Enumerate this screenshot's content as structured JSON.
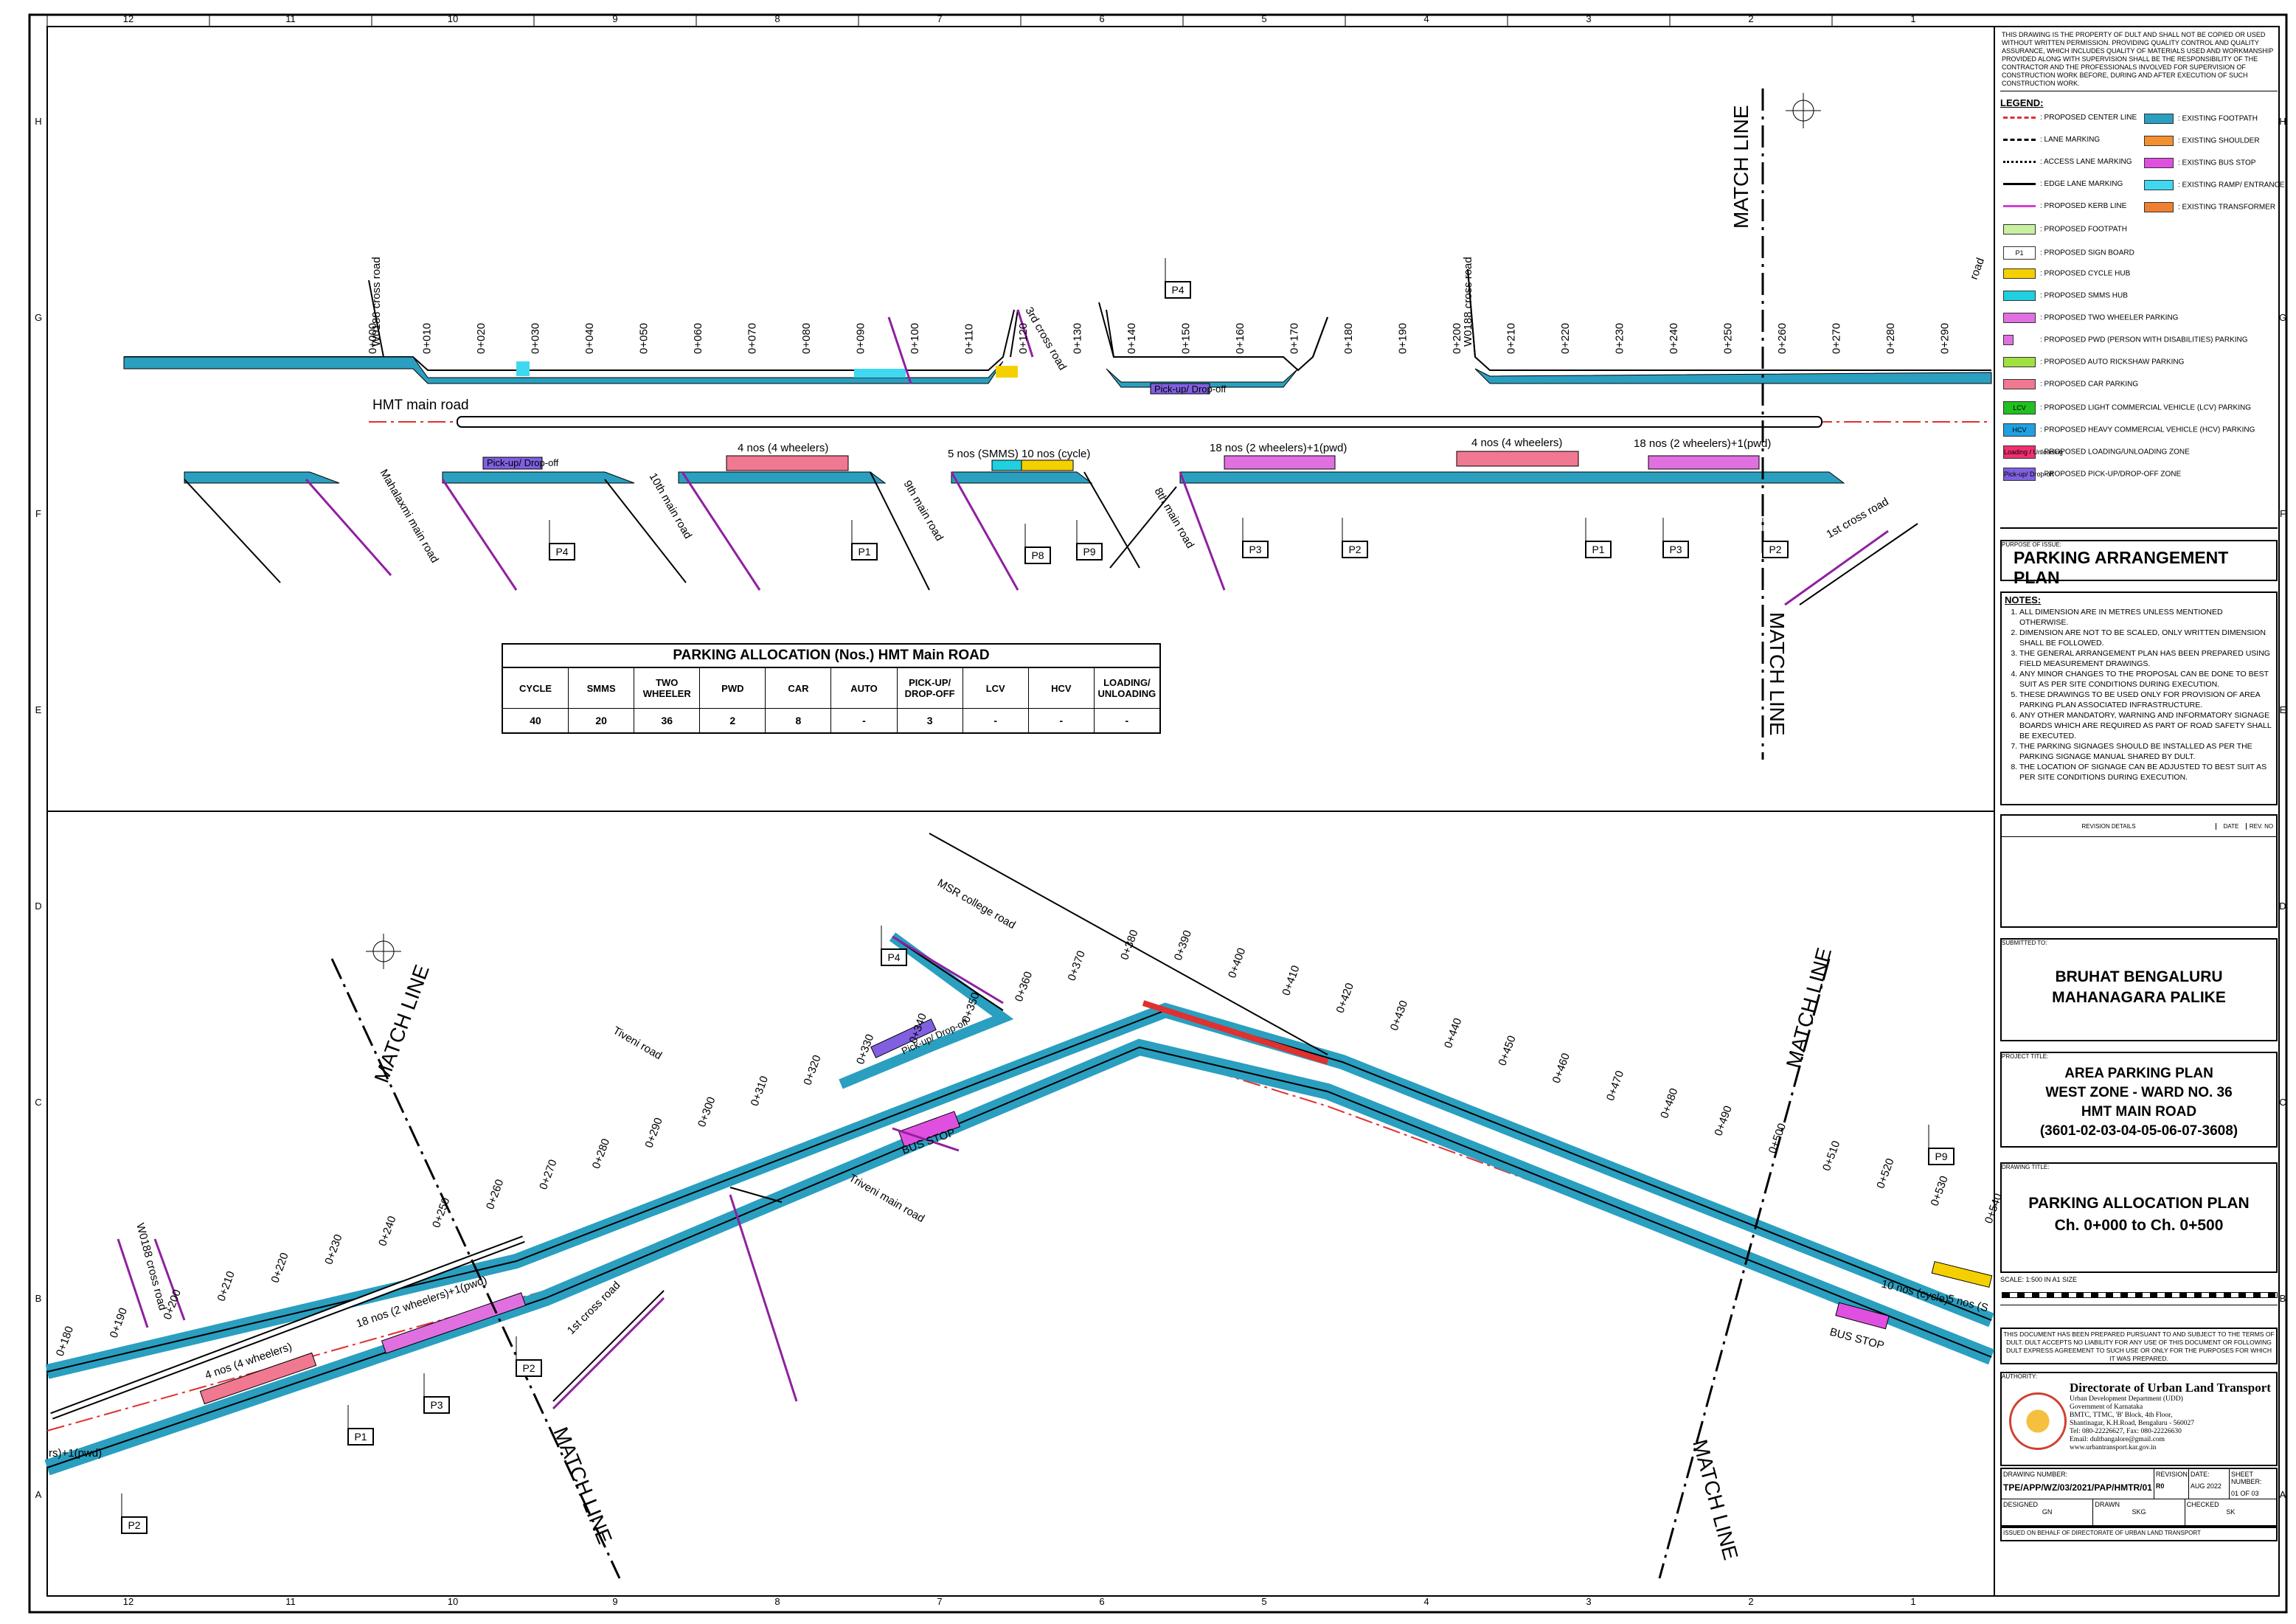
{
  "grid": {
    "columns": [
      "12",
      "11",
      "10",
      "9",
      "8",
      "7",
      "6",
      "5",
      "4",
      "3",
      "2",
      "1"
    ],
    "rows": [
      "H",
      "G",
      "F",
      "E",
      "D",
      "C",
      "B",
      "A"
    ]
  },
  "top_plan": {
    "main_road_label": "HMT main road",
    "chainages": [
      "0+000",
      "0+010",
      "0+020",
      "0+030",
      "0+040",
      "0+050",
      "0+060",
      "0+070",
      "0+080",
      "0+090",
      "0+100",
      "0+110",
      "0+120",
      "0+130",
      "0+140",
      "0+150",
      "0+160",
      "0+170",
      "0+180",
      "0+190",
      "0+200",
      "0+210",
      "0+220",
      "0+230",
      "0+240",
      "0+250",
      "0+260",
      "0+270",
      "0+280",
      "0+290"
    ],
    "roads": [
      "W0188 cross road",
      "3rd cross road",
      "W0188 cross road",
      "Mahalaxmi main road",
      "10th main road",
      "9th main road",
      "8th main road",
      "1st cross road",
      "road"
    ],
    "parking_labels": [
      "4 nos (4 wheelers)",
      "5 nos (SMMS)",
      "10 nos (cycle)",
      "18 nos (2 wheelers)+1(pwd)",
      "4 nos (4 wheelers)",
      "18 nos (2 wheelers)+1(pwd)"
    ],
    "pickup_label": "Pick-up/ Drop-off",
    "signs": [
      "P4",
      "P4",
      "P1",
      "P8",
      "P9",
      "P3",
      "P2",
      "P1",
      "P3",
      "P2"
    ],
    "match_line": "MATCH LINE"
  },
  "bottom_plan": {
    "chainages": [
      "0+180",
      "0+190",
      "0+200",
      "0+210",
      "0+220",
      "0+230",
      "0+240",
      "0+250",
      "0+260",
      "0+270",
      "0+280",
      "0+290",
      "0+300",
      "0+310",
      "0+320",
      "0+330",
      "0+340",
      "0+350",
      "0+360",
      "0+370",
      "0+380",
      "0+390",
      "0+400",
      "0+410",
      "0+420",
      "0+430",
      "0+440",
      "0+450",
      "0+460",
      "0+470",
      "0+480",
      "0+490",
      "0+500",
      "0+510",
      "0+520",
      "0+530",
      "0+540"
    ],
    "roads": [
      "W0188 cross road",
      "Tiveni road",
      "MSR college road",
      "Triveni main road",
      "1st cross road"
    ],
    "parking_labels": [
      "4 nos (4 wheelers)",
      "18 nos (2 wheelers)+1(pwd)",
      "rs)+1(pwd)",
      "10 nos (cycle)",
      "5 nos (S"
    ],
    "bus_stop": "BUS STOP",
    "pickup_label": "Pick-up/ Drop-off",
    "signs": [
      "P4",
      "P2",
      "P3",
      "P1",
      "P2",
      "P9"
    ],
    "match_line": "MATCH LINE"
  },
  "allocation_table": {
    "title": "PARKING ALLOCATION (Nos.) HMT Main ROAD",
    "headers": [
      "CYCLE",
      "SMMS",
      "TWO WHEELER",
      "PWD",
      "CAR",
      "AUTO",
      "PICK-UP/ DROP-OFF",
      "LCV",
      "HCV",
      "LOADING/ UNLOADING"
    ],
    "values": [
      "40",
      "20",
      "36",
      "2",
      "8",
      "-",
      "3",
      "-",
      "-",
      "-"
    ]
  },
  "title_block": {
    "disclaimer": "THIS DRAWING IS THE PROPERTY OF DULT AND SHALL NOT BE COPIED OR USED WITHOUT WRITTEN PERMISSION. PROVIDING QUALITY CONTROL AND QUALITY ASSURANCE, WHICH INCLUDES QUALITY OF MATERIALS USED AND WORKMANSHIP PROVIDED ALONG WITH SUPERVISION SHALL BE THE RESPONSIBILITY OF THE CONTRACTOR AND THE PROFESSIONALS INVOLVED FOR SUPERVISION OF CONSTRUCTION WORK BEFORE, DURING AND AFTER EXECUTION OF SUCH CONSTRUCTION WORK.",
    "legend_title": "LEGEND:",
    "legend_left": [
      {
        "label": ": PROPOSED CENTER LINE",
        "color": "#e03030",
        "style": "dashdot"
      },
      {
        "label": ": LANE MARKING",
        "color": "#000000",
        "style": "dash"
      },
      {
        "label": ": ACCESS LANE MARKING",
        "color": "#000000",
        "style": "dotted"
      },
      {
        "label": ": EDGE LANE MARKING",
        "color": "#000000",
        "style": "solid"
      },
      {
        "label": ": PROPOSED KERB LINE",
        "color": "#d040d0",
        "style": "solid"
      },
      {
        "label": ": PROPOSED FOOTPATH",
        "color": "#c8f0a0",
        "style": "fill"
      },
      {
        "label": ": PROPOSED SIGN BOARD",
        "color": "#ffffff",
        "style": "sign",
        "tag": "P1"
      },
      {
        "label": ": PROPOSED CYCLE HUB",
        "color": "#f5d000",
        "style": "fill"
      },
      {
        "label": ": PROPOSED SMMS HUB",
        "color": "#20d0e0",
        "style": "fill"
      },
      {
        "label": ": PROPOSED TWO WHEELER PARKING",
        "color": "#e070e0",
        "style": "fill"
      },
      {
        "label": ": PROPOSED PWD (PERSON WITH DISABILITIES) PARKING",
        "color": "#e070e0",
        "style": "small"
      },
      {
        "label": ": PROPOSED AUTO RICKSHAW PARKING",
        "color": "#a0e040",
        "style": "fill"
      },
      {
        "label": ": PROPOSED CAR PARKING",
        "color": "#f07890",
        "style": "fill"
      },
      {
        "label": ": PROPOSED LIGHT COMMERCIAL VEHICLE (LCV) PARKING",
        "color": "#20c020",
        "style": "tag",
        "tag": "LCV"
      },
      {
        "label": ": PROPOSED HEAVY COMMERCIAL VEHICLE (HCV) PARKING",
        "color": "#20a0e0",
        "style": "tag",
        "tag": "HCV"
      },
      {
        "label": ": PROPOSED LOADING/UNLOADING ZONE",
        "color": "#f03070",
        "style": "tag",
        "tag": "Loading / Unloading"
      },
      {
        "label": ": PROPOSED PICK-UP/DROP-OFF ZONE",
        "color": "#8060e0",
        "style": "tag",
        "tag": "Pick-up/ Drop-off"
      }
    ],
    "legend_right": [
      {
        "label": ": EXISTING FOOTPATH",
        "color": "#2a9fc0"
      },
      {
        "label": ": EXISTING SHOULDER",
        "color": "#f29030"
      },
      {
        "label": ": EXISTING BUS STOP",
        "color": "#e050e0"
      },
      {
        "label": ": EXISTING RAMP/ ENTRANCE",
        "color": "#40d8f0"
      },
      {
        "label": ": EXISTING TRANSFORMER",
        "color": "#f08030"
      }
    ],
    "purpose_label": "PURPOSE OF ISSUE:",
    "purpose": "PARKING ARRANGEMENT PLAN",
    "notes_title": "NOTES:",
    "notes": [
      "ALL DIMENSION ARE IN METRES UNLESS MENTIONED OTHERWISE.",
      "DIMENSION ARE NOT TO BE SCALED, ONLY WRITTEN DIMENSION SHALL BE FOLLOWED.",
      "THE GENERAL ARRANGEMENT PLAN HAS BEEN PREPARED USING FIELD MEASUREMENT DRAWINGS.",
      "ANY MINOR CHANGES TO THE PROPOSAL CAN BE DONE TO BEST SUIT AS PER SITE CONDITIONS DURING EXECUTION.",
      "THESE DRAWINGS TO BE USED ONLY FOR PROVISION OF AREA PARKING PLAN ASSOCIATED INFRASTRUCTURE.",
      "ANY OTHER MANDATORY, WARNING AND INFORMATORY SIGNAGE BOARDS WHICH ARE REQUIRED AS PART OF ROAD SAFETY SHALL BE EXECUTED.",
      "THE PARKING SIGNAGES SHOULD BE INSTALLED AS PER THE PARKING SIGNAGE MANUAL SHARED BY DULT.",
      "THE LOCATION OF SIGNAGE CAN BE ADJUSTED TO BEST SUIT AS PER SITE CONDITIONS DURING EXECUTION."
    ],
    "revision_header": "REVISION DETAILS",
    "date_header": "DATE",
    "rev_header": "REV. NO",
    "submitted_label": "SUBMITTED TO:",
    "submitted_to": "BRUHAT BENGALURU MAHANAGARA PALIKE",
    "project_label": "PROJECT TITLE:",
    "project_lines": [
      "AREA PARKING PLAN",
      "WEST ZONE - WARD NO. 36",
      "HMT MAIN ROAD",
      "(3601-02-03-04-05-06-07-3608)"
    ],
    "drawing_label": "DRAWING TITLE:",
    "drawing_lines": [
      "PARKING ALLOCATION PLAN",
      "Ch. 0+000 to Ch. 0+500"
    ],
    "scale_text": "SCALE: 1:500 IN A1 SIZE",
    "scale_ticks": [
      "0m",
      "5m",
      "10m",
      "20m",
      "30m",
      "40m",
      "50m"
    ],
    "terms": "THIS DOCUMENT HAS BEEN PREPARED PURSUANT TO AND SUBJECT TO THE TERMS OF DULT. DULT ACCEPTS NO LIABILITY FOR ANY USE OF THIS DOCUMENT OR FOLLOWING DULT EXPRESS AGREEMENT TO SUCH USE OR ONLY FOR THE PURPOSES FOR WHICH IT WAS PREPARED.",
    "authority_label": "AUTHORITY:",
    "authority_name": "Directorate of Urban Land Transport",
    "authority_lines": [
      "Urban Development Department (UDD)",
      "Government of Karnataka",
      "BMTC, TTMC, 'B' Block, 4th Floor,",
      "Shantinagar, K.H.Road, Bengaluru - 560027",
      "Tel: 080-22226627, Fax: 080-22226630",
      "Email: dultbangalore@gmail.com",
      "www.urbantransport.kar.gov.in"
    ],
    "drawing_number_label": "DRAWING NUMBER:",
    "drawing_number": "TPE/APP/WZ/03/2021/PAP/HMTR/01",
    "revision_label": "REVISION:",
    "revision": "R0",
    "date_label": "DATE:",
    "date": "AUG 2022",
    "sheet_label": "SHEET NUMBER:",
    "sheet": "01 OF 03",
    "designed_label": "DESIGNED",
    "designed": "GN",
    "drawn_label": "DRAWN",
    "drawn": "SKG",
    "checked_label": "CHECKED",
    "checked": "SK",
    "issued": "ISSUED ON BEHALF OF DIRECTORATE OF URBAN LAND TRANSPORT"
  }
}
